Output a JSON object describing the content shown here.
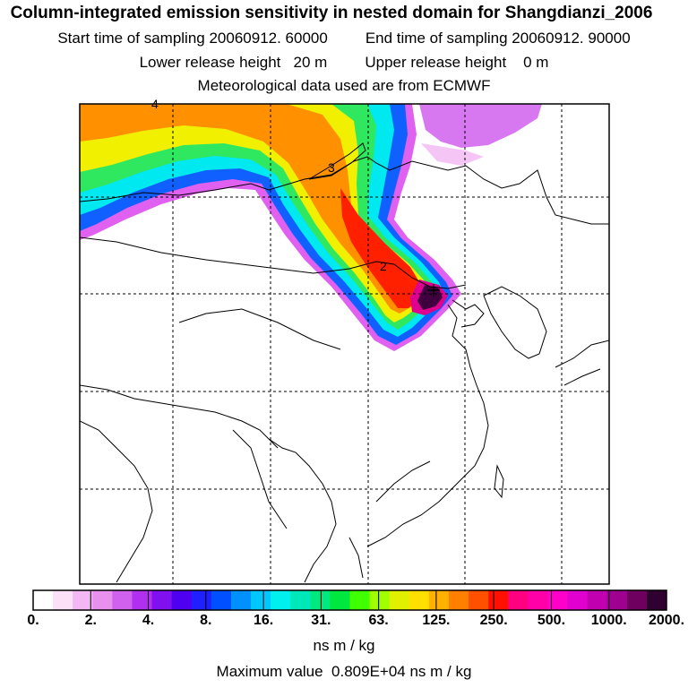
{
  "header": {
    "title": "Column-integrated emission sensitivity in nested domain for Shangdianzi_2006",
    "start_label": "Start time of sampling 20060912. 60000",
    "end_label": "End time of sampling 20060912. 90000",
    "lower_label": "Lower release height   20 m",
    "upper_label": "Upper release height    0 m",
    "met_label": "Meteorological data used are from ECMWF"
  },
  "map": {
    "contour_labels": [
      "4",
      "3",
      "2"
    ],
    "colors": {
      "frame": "#000000",
      "coast": "#000000",
      "grid": "#000000"
    }
  },
  "colorbar": {
    "tick_labels": [
      "0.",
      "2.",
      "4.",
      "8.",
      "16.",
      "31.",
      "63.",
      "125.",
      "250.",
      "500.",
      "1000.",
      "2000."
    ],
    "colors": [
      "#ffffff",
      "#fbe0f8",
      "#f3b8f3",
      "#e890ee",
      "#d060ee",
      "#b030f0",
      "#8010f0",
      "#5000f0",
      "#2020ff",
      "#0050ff",
      "#0090ff",
      "#00c8ff",
      "#00f0f0",
      "#00e8b8",
      "#00e880",
      "#00e840",
      "#40ff00",
      "#a0ff00",
      "#e0f000",
      "#ffe000",
      "#ffb000",
      "#ff8000",
      "#ff5000",
      "#ff1000",
      "#ff0080",
      "#ff00a8",
      "#ff00c8",
      "#e000d0",
      "#c000b0",
      "#a00090",
      "#700060",
      "#300030"
    ],
    "units": "ns m / kg"
  },
  "max_value": "Maximum value  0.809E+04 ns m / kg"
}
